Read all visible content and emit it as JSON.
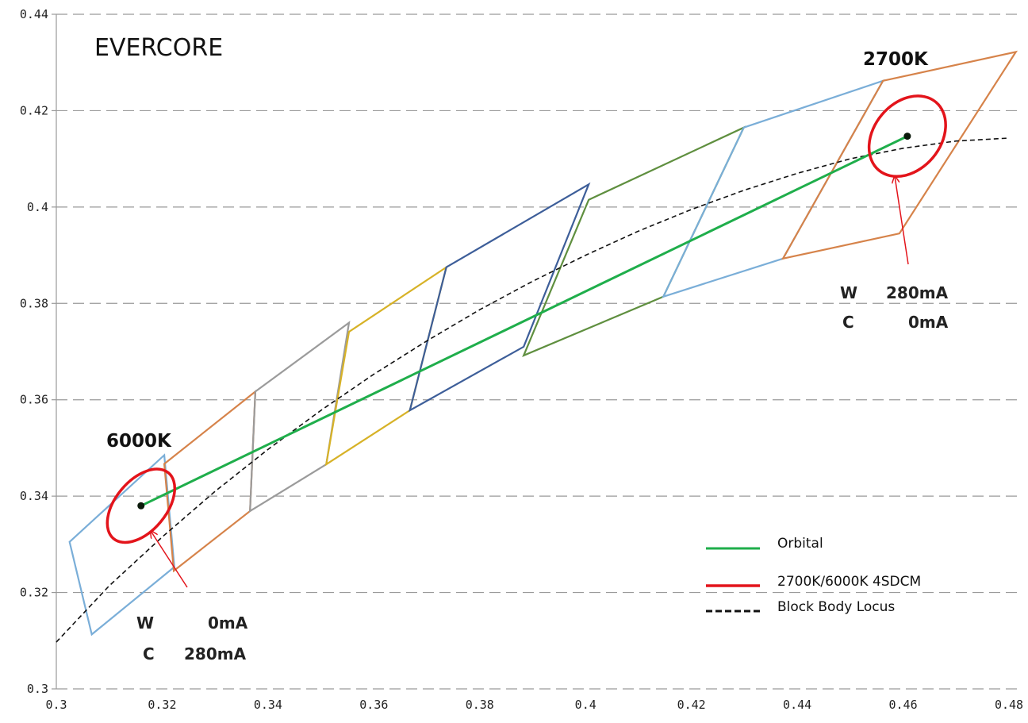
{
  "chart_data": {
    "type": "scatter",
    "title": "EVERCORE",
    "xlim": [
      0.3,
      0.48
    ],
    "ylim": [
      0.3,
      0.44
    ],
    "x_ticks": [
      0.3,
      0.32,
      0.34,
      0.36,
      0.38,
      0.4,
      0.42,
      0.44,
      0.46,
      0.48
    ],
    "x_tick_labels": [
      "0.3",
      "0.32",
      "0.34",
      "0.36",
      "0.38",
      "0.4",
      "0.42",
      "0.44",
      "0.46",
      "0.48"
    ],
    "y_ticks": [
      0.3,
      0.32,
      0.34,
      0.36,
      0.38,
      0.4,
      0.42,
      0.44
    ],
    "y_tick_labels": [
      "0.3",
      "0.32",
      "0.34",
      "0.36",
      "0.38",
      "0.4",
      "0.42",
      "0.44"
    ],
    "grid": "horizontal dashed",
    "legend_position": "bottom-right",
    "legend": [
      {
        "label": "Orbital",
        "color": "#1fae4b",
        "style": "solid"
      },
      {
        "label": "2700K/6000K  4SDCM",
        "color": "#e3141b",
        "style": "solid"
      },
      {
        "label": "Block Body Locus",
        "color": "#111111",
        "style": "dashed"
      }
    ],
    "bins": [
      {
        "color": "#7aaed8",
        "points": [
          [
            0.3025,
            0.3305
          ],
          [
            0.3204,
            0.3485
          ],
          [
            0.3223,
            0.3253
          ],
          [
            0.3067,
            0.3113
          ]
        ]
      },
      {
        "color": "#d6834a",
        "points": [
          [
            0.3204,
            0.3467
          ],
          [
            0.3376,
            0.3617
          ],
          [
            0.3366,
            0.3369
          ],
          [
            0.3222,
            0.3245
          ]
        ]
      },
      {
        "color": "#9b9b9b",
        "points": [
          [
            0.3376,
            0.3617
          ],
          [
            0.3553,
            0.376
          ],
          [
            0.351,
            0.3466
          ],
          [
            0.3366,
            0.3369
          ]
        ]
      },
      {
        "color": "#d7b227",
        "points": [
          [
            0.3553,
            0.3741
          ],
          [
            0.3737,
            0.3875
          ],
          [
            0.3668,
            0.3578
          ],
          [
            0.351,
            0.3466
          ]
        ]
      },
      {
        "color": "#3d5e99",
        "points": [
          [
            0.3737,
            0.3875
          ],
          [
            0.4006,
            0.4047
          ],
          [
            0.3883,
            0.371
          ],
          [
            0.3668,
            0.3578
          ]
        ]
      },
      {
        "color": "#5f8f3f",
        "points": [
          [
            0.4006,
            0.4015
          ],
          [
            0.4299,
            0.4165
          ],
          [
            0.4147,
            0.3814
          ],
          [
            0.3883,
            0.3692
          ]
        ]
      },
      {
        "color": "#7aaed8",
        "points": [
          [
            0.4299,
            0.4165
          ],
          [
            0.4562,
            0.4262
          ],
          [
            0.4373,
            0.3893
          ],
          [
            0.4147,
            0.3814
          ]
        ]
      },
      {
        "color": "#d6834a",
        "points": [
          [
            0.4562,
            0.4262
          ],
          [
            0.4813,
            0.4322
          ],
          [
            0.4593,
            0.3945
          ],
          [
            0.4373,
            0.3893
          ]
        ]
      }
    ],
    "orbital": {
      "color": "#1fae4b",
      "points": [
        [
          0.316,
          0.338
        ],
        [
          0.4608,
          0.4147
        ]
      ]
    },
    "ellipses": [
      {
        "center": [
          0.316,
          0.338
        ],
        "color": "#e3141b"
      },
      {
        "center": [
          0.4608,
          0.4147
        ],
        "color": "#e3141b"
      }
    ],
    "locus": {
      "color": "#111111",
      "points": [
        [
          0.3,
          0.3097
        ],
        [
          0.31,
          0.3214
        ],
        [
          0.32,
          0.3315
        ],
        [
          0.33,
          0.341
        ],
        [
          0.34,
          0.3497
        ],
        [
          0.35,
          0.3578
        ],
        [
          0.36,
          0.3653
        ],
        [
          0.37,
          0.3722
        ],
        [
          0.38,
          0.3787
        ],
        [
          0.39,
          0.3846
        ],
        [
          0.4,
          0.39
        ],
        [
          0.41,
          0.395
        ],
        [
          0.42,
          0.3995
        ],
        [
          0.43,
          0.4035
        ],
        [
          0.44,
          0.407
        ],
        [
          0.45,
          0.41
        ],
        [
          0.46,
          0.4122
        ],
        [
          0.47,
          0.4137
        ],
        [
          0.48,
          0.4143
        ]
      ]
    },
    "annotations": {
      "cct_6000": "6000K",
      "cct_2700": "2700K",
      "left_w": "W",
      "left_w_val": "0mA",
      "left_c": "C",
      "left_c_val": "280mA",
      "right_w": "W",
      "right_w_val": "280mA",
      "right_c": "C",
      "right_c_val": "0mA"
    }
  }
}
